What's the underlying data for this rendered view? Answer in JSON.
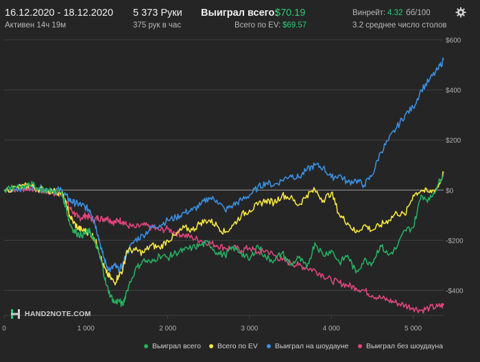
{
  "header": {
    "date_range": "16.12.2020 - 18.12.2020",
    "active": "Активен 14ч 19м",
    "hands": "5 373 Руки",
    "hands_per_hour": "375 рук в час",
    "won_total_label": "Выиграл всего:",
    "won_total_value": "$70.19",
    "ev_total_label": "Всего по EV:",
    "ev_total_value": "$69.57",
    "winrate_label": "Винрейт:",
    "winrate_value": "4.32",
    "winrate_unit": "бб/100",
    "avg_tables": "3.2 среднее число столов",
    "settings_icon": "gear-icon"
  },
  "logo": {
    "text": "HAND2NOTE.COM",
    "icon": "h2n-logo-icon"
  },
  "colors": {
    "background": "#252526",
    "grid": "#4a4a4a",
    "zero_line": "#8a8a8a",
    "won_total": "#27ae60",
    "ev": "#f5e642",
    "showdown": "#3b8fe0",
    "nonshowdown": "#e0457b",
    "accent_green": "#2ecc71"
  },
  "chart_data": {
    "type": "line",
    "xlabel": "",
    "ylabel": "",
    "xlim": [
      0,
      5373
    ],
    "ylim": [
      -500,
      600
    ],
    "x_ticks": [
      0,
      1000,
      2000,
      3000,
      4000,
      5000
    ],
    "x_tick_labels": [
      "0",
      "1 000",
      "2 000",
      "3 000",
      "4 000",
      "5 000"
    ],
    "y_ticks": [
      600,
      400,
      200,
      0,
      -200,
      -400
    ],
    "y_tick_labels": [
      "$600",
      "$400",
      "$200",
      "$0",
      "-$200",
      "-$400"
    ],
    "grid": true,
    "legend_position": "bottom-right",
    "series": [
      {
        "name": "Выиграл всего",
        "color": "#27ae60",
        "x": [
          0,
          150,
          250,
          300,
          400,
          500,
          600,
          700,
          750,
          800,
          850,
          900,
          950,
          1000,
          1050,
          1100,
          1150,
          1200,
          1250,
          1300,
          1350,
          1400,
          1450,
          1500,
          1600,
          1700,
          1800,
          1900,
          2000,
          2100,
          2200,
          2300,
          2400,
          2500,
          2600,
          2700,
          2800,
          2900,
          3000,
          3100,
          3200,
          3300,
          3400,
          3500,
          3600,
          3700,
          3800,
          3900,
          4000,
          4100,
          4200,
          4300,
          4400,
          4500,
          4600,
          4700,
          4800,
          4900,
          5000,
          5100,
          5200,
          5300,
          5373
        ],
        "y": [
          0,
          10,
          15,
          30,
          10,
          0,
          -5,
          -10,
          -60,
          -130,
          -160,
          -175,
          -180,
          -170,
          -165,
          -200,
          -240,
          -300,
          -380,
          -420,
          -450,
          -440,
          -460,
          -400,
          -320,
          -280,
          -290,
          -260,
          -270,
          -250,
          -240,
          -230,
          -220,
          -210,
          -250,
          -260,
          -230,
          -250,
          -280,
          -220,
          -270,
          -280,
          -250,
          -300,
          -270,
          -310,
          -210,
          -260,
          -240,
          -290,
          -260,
          -330,
          -280,
          -290,
          -220,
          -260,
          -230,
          -160,
          -150,
          -20,
          -40,
          20,
          70
        ]
      },
      {
        "name": "Всего по EV",
        "color": "#f5e642",
        "x": [
          0,
          150,
          250,
          300,
          400,
          500,
          600,
          700,
          750,
          800,
          850,
          900,
          950,
          1000,
          1050,
          1100,
          1150,
          1200,
          1250,
          1300,
          1350,
          1400,
          1450,
          1500,
          1600,
          1700,
          1800,
          1900,
          2000,
          2100,
          2200,
          2300,
          2400,
          2500,
          2600,
          2700,
          2800,
          2900,
          3000,
          3100,
          3200,
          3300,
          3400,
          3500,
          3600,
          3700,
          3800,
          3900,
          4000,
          4100,
          4200,
          4300,
          4400,
          4500,
          4600,
          4700,
          4800,
          4900,
          5000,
          5100,
          5200,
          5300,
          5373
        ],
        "y": [
          0,
          10,
          15,
          20,
          5,
          0,
          -5,
          -10,
          -50,
          -100,
          -130,
          -150,
          -160,
          -165,
          -170,
          -190,
          -230,
          -290,
          -330,
          -350,
          -370,
          -340,
          -320,
          -240,
          -240,
          -250,
          -220,
          -230,
          -200,
          -180,
          -150,
          -160,
          -130,
          -120,
          -140,
          -170,
          -140,
          -100,
          -80,
          -60,
          -40,
          -50,
          -20,
          -30,
          -60,
          -20,
          0,
          -40,
          -10,
          -100,
          -130,
          -170,
          -140,
          -160,
          -140,
          -120,
          -90,
          -100,
          -20,
          0,
          -10,
          10,
          70
        ]
      },
      {
        "name": "Выиграл на шоудауне",
        "color": "#3b8fe0",
        "x": [
          0,
          150,
          250,
          300,
          400,
          500,
          600,
          700,
          750,
          800,
          850,
          900,
          950,
          1000,
          1050,
          1100,
          1150,
          1200,
          1250,
          1300,
          1350,
          1400,
          1450,
          1500,
          1600,
          1700,
          1800,
          1900,
          2000,
          2100,
          2200,
          2300,
          2400,
          2500,
          2600,
          2700,
          2800,
          2900,
          3000,
          3100,
          3200,
          3300,
          3400,
          3500,
          3600,
          3700,
          3800,
          3900,
          4000,
          4100,
          4200,
          4300,
          4400,
          4500,
          4600,
          4700,
          4800,
          4900,
          5000,
          5100,
          5200,
          5300,
          5373
        ],
        "y": [
          0,
          5,
          10,
          15,
          10,
          5,
          0,
          0,
          -20,
          -40,
          -50,
          -55,
          -60,
          -70,
          -80,
          -120,
          -180,
          -250,
          -300,
          -320,
          -300,
          -320,
          -300,
          -250,
          -200,
          -180,
          -150,
          -140,
          -120,
          -110,
          -90,
          -80,
          -60,
          -30,
          -40,
          -80,
          -60,
          -40,
          -20,
          10,
          30,
          20,
          40,
          60,
          50,
          80,
          100,
          90,
          50,
          60,
          30,
          40,
          20,
          60,
          150,
          200,
          250,
          300,
          330,
          400,
          440,
          480,
          520
        ]
      },
      {
        "name": "Выиграл без шоудауна",
        "color": "#e0457b",
        "x": [
          0,
          150,
          250,
          300,
          400,
          500,
          600,
          700,
          750,
          800,
          850,
          900,
          950,
          1000,
          1050,
          1100,
          1150,
          1200,
          1250,
          1300,
          1350,
          1400,
          1450,
          1500,
          1600,
          1700,
          1800,
          1900,
          2000,
          2100,
          2200,
          2300,
          2400,
          2500,
          2600,
          2700,
          2800,
          2900,
          3000,
          3100,
          3200,
          3300,
          3400,
          3500,
          3600,
          3700,
          3800,
          3900,
          4000,
          4100,
          4200,
          4300,
          4400,
          4500,
          4600,
          4700,
          4800,
          4900,
          5000,
          5100,
          5200,
          5300,
          5373
        ],
        "y": [
          0,
          5,
          5,
          10,
          0,
          -5,
          -10,
          -20,
          -40,
          -70,
          -90,
          -110,
          -110,
          -100,
          -110,
          -120,
          -110,
          -115,
          -110,
          -120,
          -130,
          -120,
          -125,
          -140,
          -150,
          -140,
          -150,
          -160,
          -155,
          -170,
          -180,
          -190,
          -200,
          -210,
          -220,
          -230,
          -230,
          -240,
          -230,
          -250,
          -240,
          -260,
          -280,
          -290,
          -300,
          -310,
          -320,
          -340,
          -360,
          -370,
          -380,
          -390,
          -400,
          -420,
          -430,
          -440,
          -450,
          -460,
          -470,
          -480,
          -470,
          -465,
          -460
        ]
      }
    ]
  }
}
